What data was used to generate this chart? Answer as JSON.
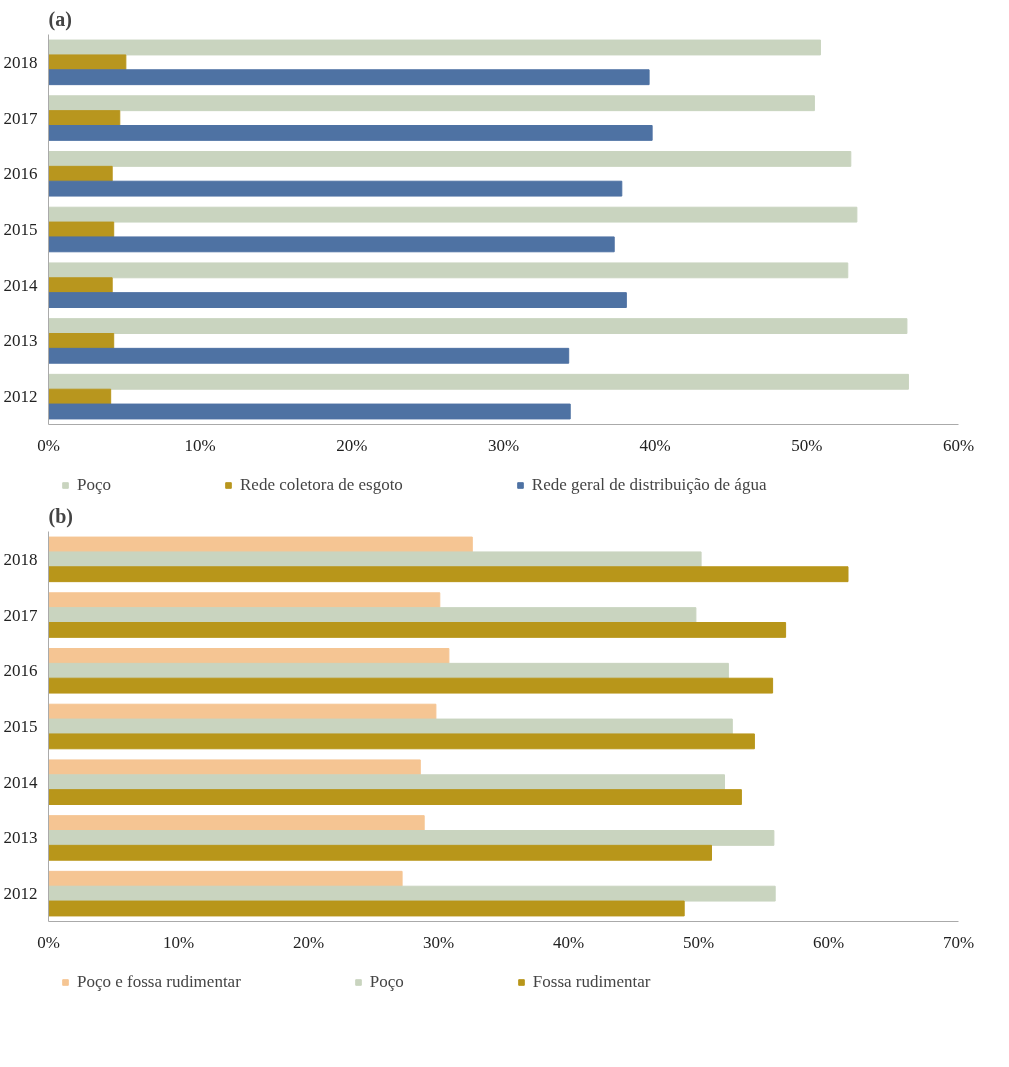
{
  "chart_data": [
    {
      "type": "bar",
      "orientation": "horizontal",
      "title": "(a)",
      "categories": [
        "2018",
        "2017",
        "2016",
        "2015",
        "2014",
        "2013",
        "2012"
      ],
      "series": [
        {
          "name": "Poço",
          "color": "#c9d4bf",
          "values": [
            50.9,
            50.5,
            52.9,
            53.3,
            52.7,
            56.6,
            56.7
          ]
        },
        {
          "name": "Rede coletora de esgoto",
          "color": "#b8961e",
          "values": [
            5.1,
            4.7,
            4.2,
            4.3,
            4.2,
            4.3,
            4.1
          ]
        },
        {
          "name": "Rede geral de distribuição de água",
          "color": "#4e72a3",
          "values": [
            39.6,
            39.8,
            37.8,
            37.3,
            38.1,
            34.3,
            34.4
          ]
        }
      ],
      "xlim": [
        0,
        60
      ],
      "xticks": [
        {
          "value": 0,
          "label": "0%"
        },
        {
          "value": 10,
          "label": "10%"
        },
        {
          "value": 20,
          "label": "20%"
        },
        {
          "value": 30,
          "label": "30%"
        },
        {
          "value": 40,
          "label": "40%"
        },
        {
          "value": 50,
          "label": "50%"
        },
        {
          "value": 60,
          "label": "60%"
        }
      ],
      "grid": false,
      "legend": "bottom"
    },
    {
      "type": "bar",
      "orientation": "horizontal",
      "title": "(b)",
      "categories": [
        "2018",
        "2017",
        "2016",
        "2015",
        "2014",
        "2013",
        "2012"
      ],
      "series": [
        {
          "name": "Poço e fossa rudimentar",
          "color": "#f5c593",
          "values": [
            32.6,
            30.1,
            30.8,
            29.8,
            28.6,
            28.9,
            27.2
          ]
        },
        {
          "name": "Poço",
          "color": "#c9d4bf",
          "values": [
            50.2,
            49.8,
            52.3,
            52.6,
            52.0,
            55.8,
            55.9
          ]
        },
        {
          "name": "Fossa rudimentar",
          "color": "#b8961a",
          "values": [
            61.5,
            56.7,
            55.7,
            54.3,
            53.3,
            51.0,
            48.9
          ]
        }
      ],
      "xlim": [
        0,
        70
      ],
      "xticks": [
        {
          "value": 0,
          "label": "0%"
        },
        {
          "value": 10,
          "label": "10%"
        },
        {
          "value": 20,
          "label": "20%"
        },
        {
          "value": 30,
          "label": "30%"
        },
        {
          "value": 40,
          "label": "40%"
        },
        {
          "value": 50,
          "label": "50%"
        },
        {
          "value": 60,
          "label": "60%"
        },
        {
          "value": 70,
          "label": "70%"
        }
      ],
      "grid": false,
      "legend": "bottom"
    }
  ]
}
